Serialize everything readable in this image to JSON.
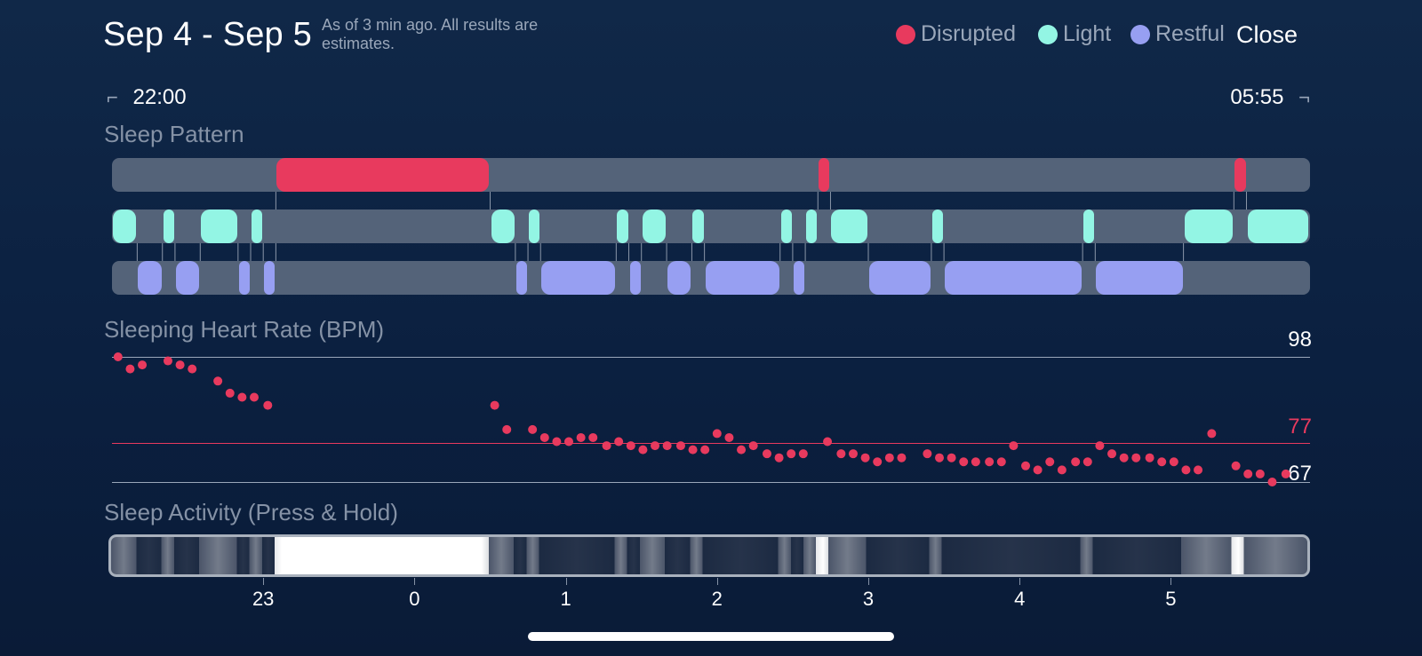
{
  "header": {
    "title": "Sep 4 - Sep 5",
    "subtitle": "As of 3 min ago. All results are estimates.",
    "close_label": "Close"
  },
  "legend": [
    {
      "label": "Disrupted",
      "color": "#e83a5e"
    },
    {
      "label": "Light",
      "color": "#93f5e4"
    },
    {
      "label": "Restful",
      "color": "#979ff2"
    }
  ],
  "time_range": {
    "start": "22:00",
    "end": "05:55"
  },
  "sleep_pattern": {
    "title": "Sleep Pattern",
    "segments": [
      {
        "stage": "light",
        "start": "22:00",
        "end": "22:10"
      },
      {
        "stage": "restful",
        "start": "22:10",
        "end": "22:20"
      },
      {
        "stage": "light",
        "start": "22:20",
        "end": "22:25"
      },
      {
        "stage": "restful",
        "start": "22:25",
        "end": "22:35"
      },
      {
        "stage": "light",
        "start": "22:35",
        "end": "22:50"
      },
      {
        "stage": "restful",
        "start": "22:50",
        "end": "22:55"
      },
      {
        "stage": "light",
        "start": "22:55",
        "end": "23:00"
      },
      {
        "stage": "restful",
        "start": "23:00",
        "end": "23:05"
      },
      {
        "stage": "disrupted",
        "start": "23:05",
        "end": "00:30"
      },
      {
        "stage": "light",
        "start": "00:30",
        "end": "00:40"
      },
      {
        "stage": "restful",
        "start": "00:40",
        "end": "00:45"
      },
      {
        "stage": "light",
        "start": "00:45",
        "end": "00:50"
      },
      {
        "stage": "restful",
        "start": "00:50",
        "end": "01:20"
      },
      {
        "stage": "light",
        "start": "01:20",
        "end": "01:25"
      },
      {
        "stage": "restful",
        "start": "01:25",
        "end": "01:30"
      },
      {
        "stage": "light",
        "start": "01:30",
        "end": "01:40"
      },
      {
        "stage": "restful",
        "start": "01:40",
        "end": "01:50"
      },
      {
        "stage": "light",
        "start": "01:50",
        "end": "01:55"
      },
      {
        "stage": "restful",
        "start": "01:55",
        "end": "02:25"
      },
      {
        "stage": "light",
        "start": "02:25",
        "end": "02:30"
      },
      {
        "stage": "restful",
        "start": "02:30",
        "end": "02:35"
      },
      {
        "stage": "light",
        "start": "02:35",
        "end": "02:40"
      },
      {
        "stage": "disrupted",
        "start": "02:40",
        "end": "02:45"
      },
      {
        "stage": "light",
        "start": "02:45",
        "end": "03:00"
      },
      {
        "stage": "restful",
        "start": "03:00",
        "end": "03:25"
      },
      {
        "stage": "light",
        "start": "03:25",
        "end": "03:30"
      },
      {
        "stage": "restful",
        "start": "03:30",
        "end": "04:25"
      },
      {
        "stage": "light",
        "start": "04:25",
        "end": "04:30"
      },
      {
        "stage": "restful",
        "start": "04:30",
        "end": "05:05"
      },
      {
        "stage": "light",
        "start": "05:05",
        "end": "05:25"
      },
      {
        "stage": "disrupted",
        "start": "05:25",
        "end": "05:30"
      },
      {
        "stage": "light",
        "start": "05:30",
        "end": "05:55"
      }
    ]
  },
  "heart_rate": {
    "title": "Sleeping Heart Rate (BPM)",
    "max_label": "98",
    "avg_label": "77",
    "min_label": "67",
    "max": 98,
    "avg": 77,
    "min": 67,
    "colors": {
      "points": "#e83a5e",
      "avg_line": "#e83a5e",
      "ref_lines": "#9aa7ba"
    }
  },
  "sleep_activity": {
    "title": "Sleep Activity (Press & Hold)"
  },
  "chart_data": {
    "type": "scatter",
    "title": "Sleeping Heart Rate (BPM)",
    "x_unit": "hours",
    "xlim": [
      -2.0,
      5.92
    ],
    "ylim": [
      67,
      98
    ],
    "x_ticks": [
      "23",
      "0",
      "1",
      "2",
      "3",
      "4",
      "5"
    ],
    "x_tick_values": [
      -1,
      0,
      1,
      2,
      3,
      4,
      5
    ],
    "reference_lines": [
      98,
      77,
      67
    ],
    "points": [
      [
        -1.96,
        98
      ],
      [
        -1.88,
        95
      ],
      [
        -1.8,
        96
      ],
      [
        -1.63,
        97
      ],
      [
        -1.55,
        96
      ],
      [
        -1.47,
        95
      ],
      [
        -1.3,
        92
      ],
      [
        -1.22,
        89
      ],
      [
        -1.14,
        88
      ],
      [
        -1.06,
        88
      ],
      [
        -0.97,
        86
      ],
      [
        0.53,
        86
      ],
      [
        0.61,
        80
      ],
      [
        0.78,
        80
      ],
      [
        0.86,
        78
      ],
      [
        0.94,
        77
      ],
      [
        1.02,
        77
      ],
      [
        1.1,
        78
      ],
      [
        1.18,
        78
      ],
      [
        1.27,
        76
      ],
      [
        1.35,
        77
      ],
      [
        1.43,
        76
      ],
      [
        1.51,
        75
      ],
      [
        1.59,
        76
      ],
      [
        1.67,
        76
      ],
      [
        1.76,
        76
      ],
      [
        1.84,
        75
      ],
      [
        1.92,
        75
      ],
      [
        2.0,
        79
      ],
      [
        2.08,
        78
      ],
      [
        2.16,
        75
      ],
      [
        2.24,
        76
      ],
      [
        2.33,
        74
      ],
      [
        2.41,
        73
      ],
      [
        2.49,
        74
      ],
      [
        2.57,
        74
      ],
      [
        2.73,
        77
      ],
      [
        2.82,
        74
      ],
      [
        2.9,
        74
      ],
      [
        2.98,
        73
      ],
      [
        3.06,
        72
      ],
      [
        3.14,
        73
      ],
      [
        3.22,
        73
      ],
      [
        3.39,
        74
      ],
      [
        3.47,
        73
      ],
      [
        3.55,
        73
      ],
      [
        3.63,
        72
      ],
      [
        3.71,
        72
      ],
      [
        3.8,
        72
      ],
      [
        3.88,
        72
      ],
      [
        3.96,
        76
      ],
      [
        4.04,
        71
      ],
      [
        4.12,
        70
      ],
      [
        4.2,
        72
      ],
      [
        4.28,
        70
      ],
      [
        4.37,
        72
      ],
      [
        4.45,
        72
      ],
      [
        4.53,
        76
      ],
      [
        4.61,
        74
      ],
      [
        4.69,
        73
      ],
      [
        4.77,
        73
      ],
      [
        4.86,
        73
      ],
      [
        4.94,
        72
      ],
      [
        5.02,
        72
      ],
      [
        5.1,
        70
      ],
      [
        5.18,
        70
      ],
      [
        5.27,
        79
      ],
      [
        5.43,
        71
      ],
      [
        5.51,
        69
      ],
      [
        5.59,
        69
      ],
      [
        5.67,
        67
      ],
      [
        5.76,
        69
      ]
    ]
  }
}
